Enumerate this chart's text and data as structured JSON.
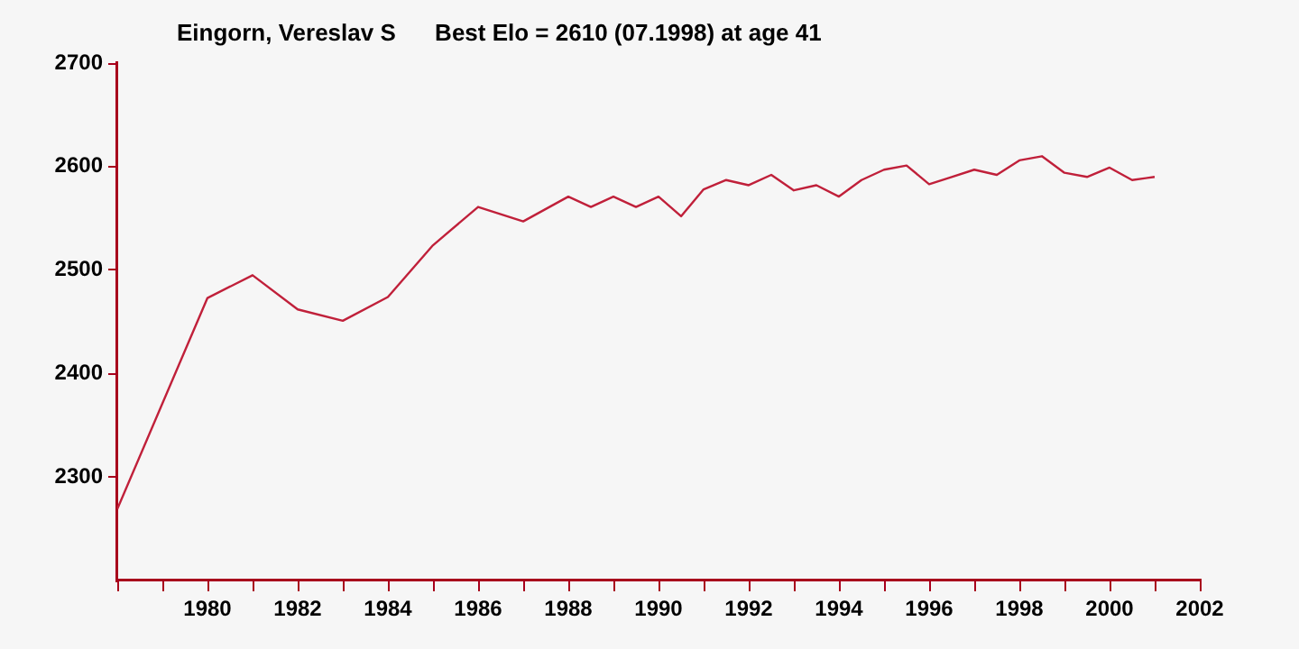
{
  "chart_data": {
    "type": "line",
    "title": "Eingorn, Vereslav S      Best Elo = 2610 (07.1998) at age 41",
    "x": [
      1978,
      1980,
      1981,
      1982,
      1983,
      1984,
      1985,
      1986,
      1987,
      1988,
      1988.5,
      1989,
      1989.5,
      1990,
      1990.5,
      1991,
      1991.5,
      1992,
      1992.5,
      1993,
      1993.5,
      1994,
      1994.5,
      1995,
      1995.5,
      1996,
      1996.5,
      1997,
      1997.5,
      1998,
      1998.5,
      1999,
      1999.5,
      2000,
      2000.5,
      2001
    ],
    "series": [
      {
        "color": "#c0203a",
        "values": [
          2269,
          2473,
          2495,
          2462,
          2451,
          2474,
          2524,
          2561,
          2547,
          2571,
          2561,
          2571,
          2561,
          2571,
          2552,
          2578,
          2587,
          2582,
          2592,
          2577,
          2582,
          2571,
          2587,
          2597,
          2601,
          2583,
          2590,
          2597,
          2592,
          2606,
          2610,
          2594,
          2590,
          2599,
          2587,
          2590
        ]
      }
    ],
    "xlim": [
      1978,
      2002
    ],
    "xticks": [
      {
        "value": 1978,
        "label": null
      },
      {
        "value": 1979,
        "label": null
      },
      1980,
      {
        "value": 1981,
        "label": null
      },
      1982,
      {
        "value": 1983,
        "label": null
      },
      1984,
      {
        "value": 1985,
        "label": null
      },
      1986,
      {
        "value": 1987,
        "label": null
      },
      1988,
      {
        "value": 1989,
        "label": null
      },
      1990,
      {
        "value": 1991,
        "label": null
      },
      1992,
      {
        "value": 1993,
        "label": null
      },
      1994,
      {
        "value": 1995,
        "label": null
      },
      1996,
      {
        "value": 1997,
        "label": null
      },
      1998,
      {
        "value": 1999,
        "label": null
      },
      2000,
      {
        "value": 2001,
        "label": null
      },
      2002
    ],
    "ylim": [
      2200,
      2700
    ],
    "yticks": [
      2300,
      2400,
      2500,
      2600,
      2700
    ],
    "grid": false,
    "legend": false,
    "marker": "none",
    "line_style": "solid"
  }
}
